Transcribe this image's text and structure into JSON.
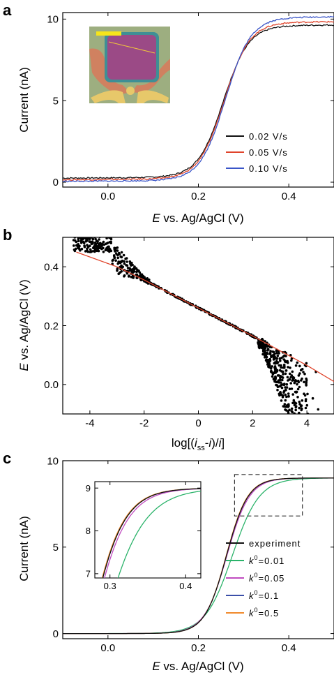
{
  "colors": {
    "black": "#111111",
    "red": "#e0442b",
    "blue": "#3a55c8",
    "green": "#2bb36a",
    "magenta": "#c04bc0",
    "navy": "#3b4fa8",
    "orange": "#f08a2c",
    "scatter": "#000000",
    "fit": "#e0442b"
  },
  "chart_data": [
    {
      "panel": "a",
      "type": "line",
      "xlabel": {
        "italic": "E",
        "rest": " vs. Ag/AgCl (V)"
      },
      "ylabel": "Current (nA)",
      "xlim": [
        -0.1,
        0.5
      ],
      "ylim": [
        -0.3,
        10.4
      ],
      "xticks": [
        "0.0",
        "0.2",
        "0.4"
      ],
      "xtick_values": [
        0.0,
        0.2,
        0.4
      ],
      "yticks": [
        "0",
        "5",
        "10"
      ],
      "ytick_values": [
        0,
        5,
        10
      ],
      "legend_position": "lower-right",
      "series": [
        {
          "name": "0.02 V/s",
          "color": "#111111",
          "plateau_low": 0.25,
          "plateau_high": 9.55,
          "half_wave": 0.255,
          "slope": 0.028
        },
        {
          "name": "0.05 V/s",
          "color": "#e0442b",
          "plateau_low": 0.15,
          "plateau_high": 9.75,
          "half_wave": 0.257,
          "slope": 0.028
        },
        {
          "name": "0.10 V/s",
          "color": "#3a55c8",
          "plateau_low": 0.05,
          "plateau_high": 10.05,
          "half_wave": 0.26,
          "slope": 0.028
        }
      ]
    },
    {
      "panel": "b",
      "type": "scatter",
      "xlabel": {
        "pre": "log[(",
        "i1": "i",
        "sub": "ss",
        "mid": "-",
        "i2": "i",
        "post": ")/",
        "i3": "i",
        "end": "]"
      },
      "ylabel": {
        "italic": "E",
        "rest": " vs. Ag/AgCl (V)"
      },
      "xlim": [
        -5,
        5
      ],
      "ylim": [
        -0.1,
        0.5
      ],
      "xticks": [
        "-4",
        "-2",
        "0",
        "2",
        "4"
      ],
      "xtick_values": [
        -4,
        -2,
        0,
        2,
        4
      ],
      "yticks": [
        "0.0",
        "0.2",
        "0.4"
      ],
      "ytick_values": [
        0.0,
        0.2,
        0.4
      ],
      "fit_line": {
        "x": [
          -4.5,
          -3,
          -2,
          0,
          2,
          3,
          4,
          5
        ],
        "y": [
          0.45,
          0.4,
          0.355,
          0.26,
          0.165,
          0.115,
          0.065,
          0.01
        ]
      }
    },
    {
      "panel": "c",
      "type": "line",
      "xlabel": {
        "italic": "E",
        "rest": " vs. Ag/AgCl (V)"
      },
      "ylabel": "Current (nA)",
      "xlim": [
        -0.1,
        0.5
      ],
      "ylim": [
        -0.3,
        10.0
      ],
      "xticks": [
        "0.0",
        "0.2",
        "0.4"
      ],
      "xtick_values": [
        0.0,
        0.2,
        0.4
      ],
      "yticks": [
        "0",
        "5",
        "10"
      ],
      "ytick_values": [
        0,
        5,
        10
      ],
      "legend_position": "lower-right",
      "series": [
        {
          "name": "experiment",
          "color": "#111111",
          "plateau": 9.0,
          "half_wave": 0.262,
          "slope": 0.024
        },
        {
          "name": "k0=0.01",
          "label_sym": "k",
          "label_sup": "0",
          "label_val": "=0.01",
          "color": "#2bb36a",
          "plateau": 9.0,
          "half_wave": 0.275,
          "slope": 0.03
        },
        {
          "name": "k0=0.05",
          "label_sym": "k",
          "label_sup": "0",
          "label_val": "=0.05",
          "color": "#c04bc0",
          "plateau": 9.0,
          "half_wave": 0.263,
          "slope": 0.025
        },
        {
          "name": "k0=0.1",
          "label_sym": "k",
          "label_sup": "0",
          "label_val": "=0.1",
          "color": "#3b4fa8",
          "plateau": 9.0,
          "half_wave": 0.262,
          "slope": 0.024
        },
        {
          "name": "k0=0.5",
          "label_sym": "k",
          "label_sup": "0",
          "label_val": "=0.5",
          "color": "#f08a2c",
          "plateau": 9.0,
          "half_wave": 0.2615,
          "slope": 0.0238
        }
      ],
      "inset": {
        "xlim": [
          0.28,
          0.42
        ],
        "ylim": [
          6.9,
          9.15
        ],
        "xticks": [
          "0.3",
          "0.4"
        ],
        "xtick_values": [
          0.3,
          0.4
        ],
        "yticks": [
          "7",
          "8",
          "9"
        ],
        "ytick_values": [
          7,
          8,
          9
        ],
        "zoom_box": {
          "x": [
            0.28,
            0.43
          ],
          "y": [
            6.8,
            9.2
          ]
        }
      }
    }
  ]
}
